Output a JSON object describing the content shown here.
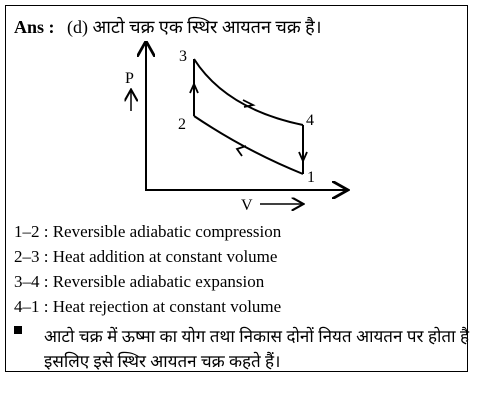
{
  "answer": {
    "prefix": "Ans :",
    "option": "(d)",
    "statement": "आटो चक्र एक स्थिर आयतन चक्र है।"
  },
  "diagram": {
    "y_axis_label": "P",
    "x_axis_label": "V",
    "points": [
      {
        "id": "1",
        "label": "1"
      },
      {
        "id": "2",
        "label": "2"
      },
      {
        "id": "3",
        "label": "3"
      },
      {
        "id": "4",
        "label": "4"
      }
    ]
  },
  "processes": [
    {
      "label": "1–2 : Reversible adiabatic compression"
    },
    {
      "label": "2–3 : Heat addition at constant volume"
    },
    {
      "label": "3–4 : Reversible adiabatic expansion"
    },
    {
      "label": "4–1 : Heat rejection at constant volume"
    }
  ],
  "note": "आटो चक्र में ऊष्मा का योग तथा निकास दोनों नियत आयतन पर होता है इसलिए इसे स्थिर आयतन चक्र कहते हैं।"
}
